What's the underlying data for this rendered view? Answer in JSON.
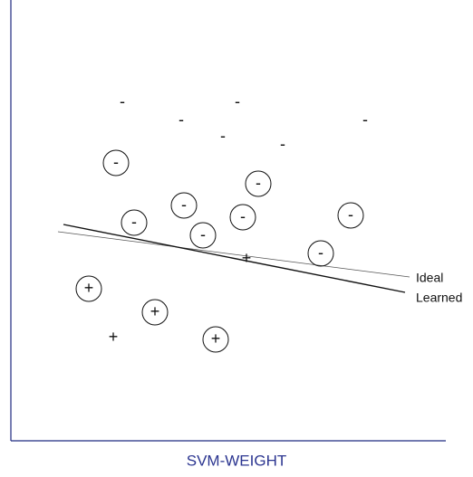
{
  "title": "SVM-WEIGHT",
  "lines": [
    {
      "label": "Ideal"
    },
    {
      "label": "Learned"
    }
  ],
  "points": [
    {
      "label": "-",
      "circled": false
    },
    {
      "label": "-",
      "circled": false
    },
    {
      "label": "-",
      "circled": false
    },
    {
      "label": "-",
      "circled": false
    },
    {
      "label": "-",
      "circled": false
    },
    {
      "label": "-",
      "circled": false
    },
    {
      "label": "-",
      "circled": true
    },
    {
      "label": "-",
      "circled": true
    },
    {
      "label": "-",
      "circled": true
    },
    {
      "label": "-",
      "circled": true
    },
    {
      "label": "-",
      "circled": true
    },
    {
      "label": "-",
      "circled": true
    },
    {
      "label": "-",
      "circled": true
    },
    {
      "label": "-",
      "circled": true
    },
    {
      "label": "+",
      "circled": false
    },
    {
      "label": "+",
      "circled": false
    },
    {
      "label": "+",
      "circled": true
    },
    {
      "label": "+",
      "circled": true
    },
    {
      "label": "+",
      "circled": true
    }
  ]
}
